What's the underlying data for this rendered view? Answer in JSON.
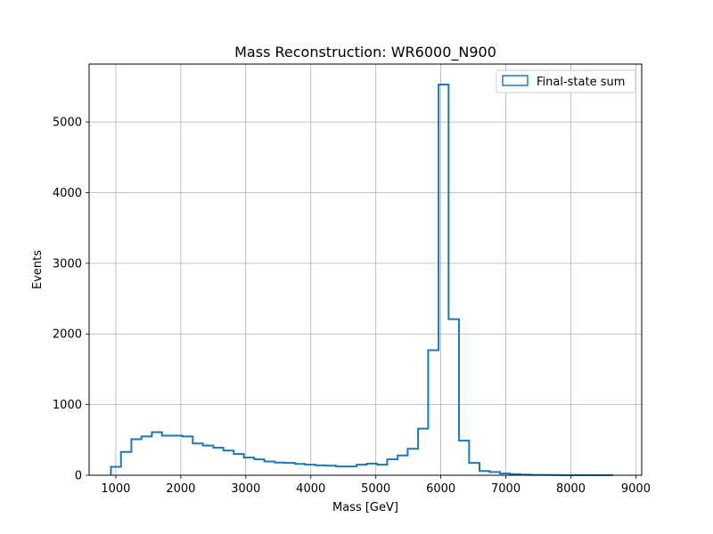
{
  "chart_data": {
    "type": "histogram-step",
    "title": "Mass Reconstruction: WR6000_N900",
    "xlabel": "Mass [GeV]",
    "ylabel": "Events",
    "xlim": [
      590,
      9090
    ],
    "ylim": [
      0,
      5820
    ],
    "xticks": [
      1000,
      2000,
      3000,
      4000,
      5000,
      6000,
      7000,
      8000,
      9000
    ],
    "yticks": [
      0,
      1000,
      2000,
      3000,
      4000,
      5000
    ],
    "grid": true,
    "legend_position": "top-right",
    "series": [
      {
        "name": "Final-state sum",
        "color": "#1f77b4",
        "bin_edges": [
          925,
          1080,
          1240,
          1395,
          1555,
          1710,
          1870,
          2025,
          2185,
          2340,
          2500,
          2655,
          2815,
          2970,
          3130,
          3285,
          3445,
          3600,
          3760,
          3915,
          4075,
          4230,
          4390,
          4545,
          4705,
          4860,
          5020,
          5175,
          5335,
          5490,
          5650,
          5805,
          5965,
          6120,
          6280,
          6435,
          6595,
          6750,
          6910,
          7065,
          7225,
          7380,
          7540,
          7695,
          7855,
          8010,
          8170,
          8325,
          8485,
          8640
        ],
        "counts": [
          120,
          330,
          510,
          550,
          610,
          560,
          560,
          550,
          450,
          420,
          390,
          350,
          300,
          250,
          225,
          195,
          180,
          175,
          160,
          150,
          140,
          135,
          125,
          125,
          150,
          165,
          150,
          225,
          280,
          375,
          660,
          1770,
          5530,
          2210,
          490,
          175,
          60,
          45,
          25,
          15,
          10,
          5,
          5,
          3,
          2,
          2,
          1,
          1,
          1
        ]
      }
    ]
  }
}
